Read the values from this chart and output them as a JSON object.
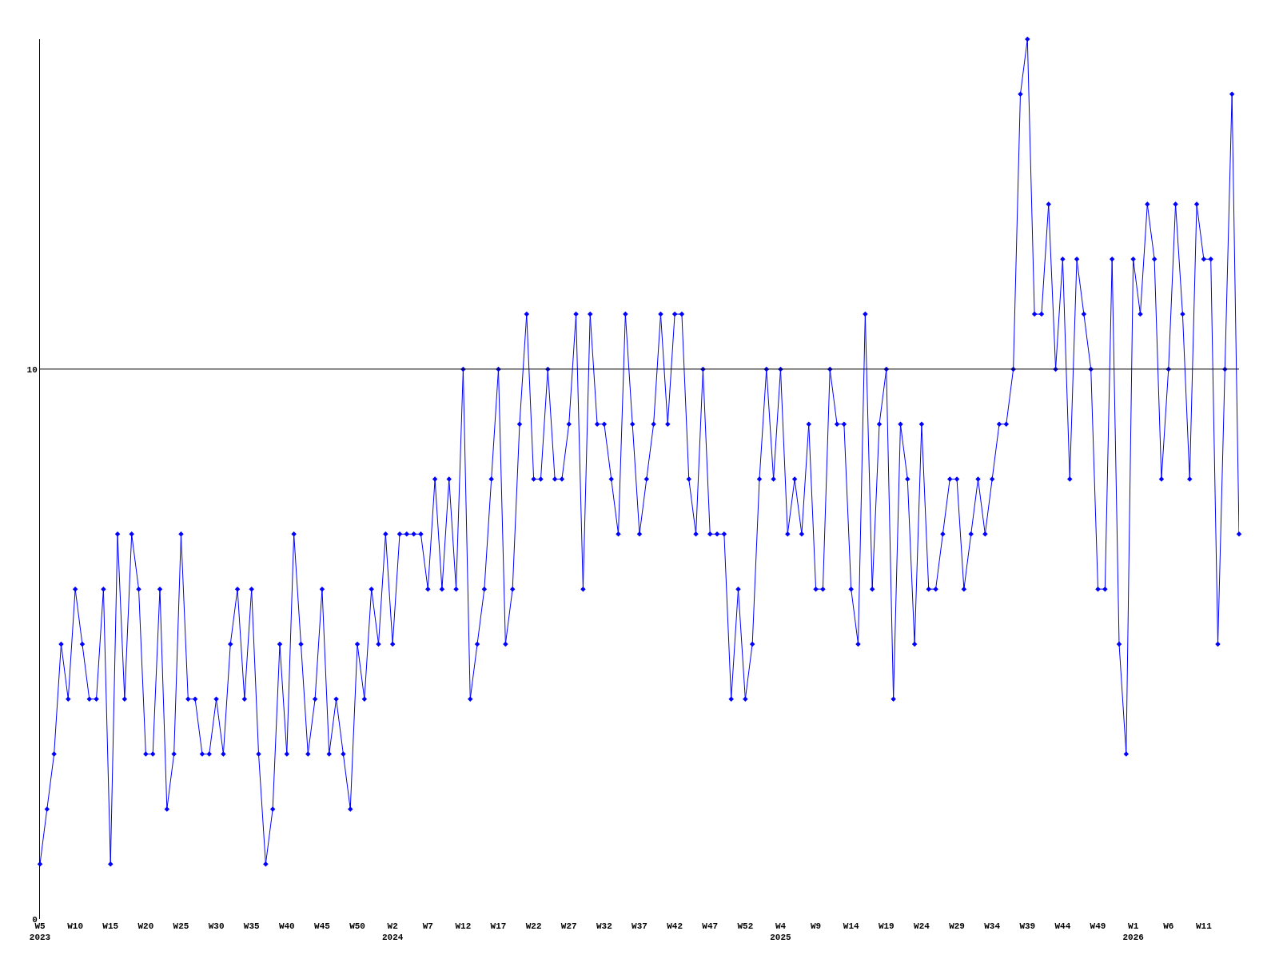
{
  "chart_data": {
    "type": "line",
    "categories": [
      "W5\n2023",
      null,
      null,
      null,
      null,
      "W10",
      null,
      null,
      null,
      null,
      "W15",
      null,
      null,
      null,
      null,
      "W20",
      null,
      null,
      null,
      null,
      "W25",
      null,
      null,
      null,
      null,
      "W30",
      null,
      null,
      null,
      null,
      "W35",
      null,
      null,
      null,
      null,
      "W40",
      null,
      null,
      null,
      null,
      "W45",
      null,
      null,
      null,
      null,
      "W50",
      null,
      null,
      null,
      null,
      "W2\n2024",
      null,
      null,
      null,
      null,
      "W7",
      null,
      null,
      null,
      null,
      "W12",
      null,
      null,
      null,
      null,
      "W17",
      null,
      null,
      null,
      null,
      "W22",
      null,
      null,
      null,
      null,
      "W27",
      null,
      null,
      null,
      null,
      "W32",
      null,
      null,
      null,
      null,
      "W37",
      null,
      null,
      null,
      null,
      "W42",
      null,
      null,
      null,
      null,
      "W47",
      null,
      null,
      null,
      null,
      "W52",
      null,
      null,
      null,
      null,
      "W4\n2025",
      null,
      null,
      null,
      null,
      "W9",
      null,
      null,
      null,
      null,
      "W14",
      null,
      null,
      null,
      null,
      "W19",
      null,
      null,
      null,
      null,
      "W24",
      null,
      null,
      null,
      null,
      "W29",
      null,
      null,
      null,
      null,
      "W34",
      null,
      null,
      null,
      null,
      "W39",
      null,
      null,
      null,
      null,
      "W44",
      null,
      null,
      null,
      null,
      "W49",
      null,
      null,
      null,
      null,
      "W1\n2026",
      null,
      null,
      null,
      null,
      "W6",
      null,
      null,
      null,
      null,
      "W11",
      null,
      null,
      null,
      null,
      null
    ],
    "series": [
      {
        "color": "#0000ff",
        "values": [
          1,
          2,
          3,
          5,
          4,
          6,
          5,
          4,
          4,
          6,
          1,
          7,
          4,
          7,
          6,
          3,
          3,
          6,
          2,
          3,
          7,
          4,
          4,
          3,
          3,
          4,
          3,
          5,
          6,
          4,
          6,
          3,
          1,
          2,
          5,
          3,
          7,
          5,
          3,
          4,
          6,
          3,
          4,
          3,
          2,
          5,
          4,
          6,
          5,
          7,
          5,
          7,
          7,
          7,
          7,
          6,
          8,
          6,
          8,
          6,
          10,
          4,
          5,
          6,
          8,
          10,
          5,
          6,
          9,
          11,
          8,
          8,
          10,
          8,
          8,
          9,
          11,
          6,
          11,
          9,
          9,
          8,
          7,
          11,
          9,
          7,
          8,
          9,
          11,
          9,
          11,
          11,
          8,
          7,
          10,
          7,
          7,
          7,
          4,
          6,
          4,
          5,
          8,
          10,
          8,
          10,
          7,
          8,
          7,
          9,
          6,
          6,
          10,
          9,
          9,
          6,
          5,
          11,
          6,
          9,
          10,
          4,
          9,
          8,
          5,
          9,
          6,
          6,
          7,
          8,
          8,
          6,
          7,
          8,
          7,
          8,
          9,
          9,
          10,
          15,
          16,
          11,
          11,
          13,
          10,
          12,
          8,
          12,
          11,
          10,
          6,
          6,
          12,
          5,
          3,
          12,
          11,
          13,
          12,
          8,
          10,
          13,
          11,
          8,
          13,
          12,
          12,
          5,
          10,
          15,
          7
        ]
      }
    ],
    "ylim": [
      0,
      16
    ],
    "yticks": [
      0,
      10
    ],
    "ref_lines": [
      {
        "axis": "y",
        "value": 10,
        "color": "#000000"
      }
    ],
    "marker": "diamond",
    "line_style": "solid"
  }
}
